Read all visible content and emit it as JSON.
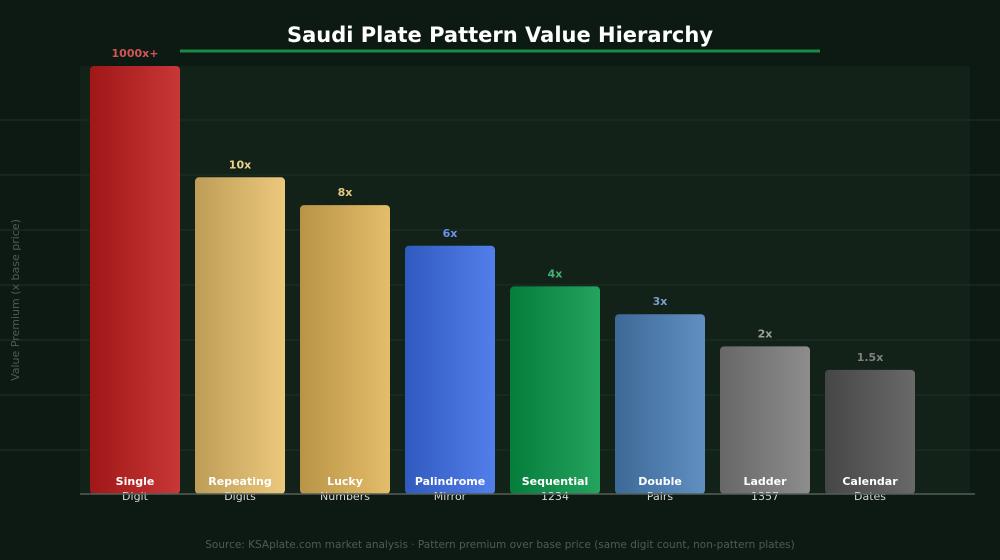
{
  "chart_data": {
    "type": "bar",
    "title": "Saudi Plate Pattern Value Hierarchy",
    "ylabel": "Value Premium (x base price)",
    "source": "Source: KSAplate.com market analysis · Pattern premium over base price (same digit count, non-pattern plates)",
    "grid": true,
    "bars": [
      {
        "label": "1000x+",
        "name_top": "Single",
        "name_bottom": "Digit",
        "display_value": 10,
        "color": "#c21c1c"
      },
      {
        "label": "10x",
        "name_top": "Repeating",
        "name_bottom": "Digits",
        "display_value": 7.4,
        "color": "#e8c06a"
      },
      {
        "label": "8x",
        "name_top": "Lucky",
        "name_bottom": "Numbers",
        "display_value": 6.75,
        "color": "#e0b456"
      },
      {
        "label": "6x",
        "name_top": "Palindrome",
        "name_bottom": "Mirror",
        "display_value": 5.8,
        "color": "#3b6ee8"
      },
      {
        "label": "4x",
        "name_top": "Sequential",
        "name_bottom": "1234",
        "display_value": 4.85,
        "color": "#069848"
      },
      {
        "label": "3x",
        "name_top": "Double",
        "name_bottom": "Pairs",
        "display_value": 4.2,
        "color": "#4a80b8"
      },
      {
        "label": "2x",
        "name_top": "Ladder",
        "name_bottom": "1357",
        "display_value": 3.45,
        "color": "#7e7e7e"
      },
      {
        "label": "1.5x",
        "name_top": "Calendar",
        "name_bottom": "Dates",
        "display_value": 2.9,
        "color": "#555555"
      }
    ],
    "ylim": [
      0,
      10
    ],
    "colors": {
      "background": "#0d1a13",
      "plot_bg": "#132219",
      "title": "#ffffff",
      "title_underline": "#1a8a45",
      "grid": "#1e3326",
      "axis": "#555e58",
      "source_text": "#4f5a53"
    }
  }
}
